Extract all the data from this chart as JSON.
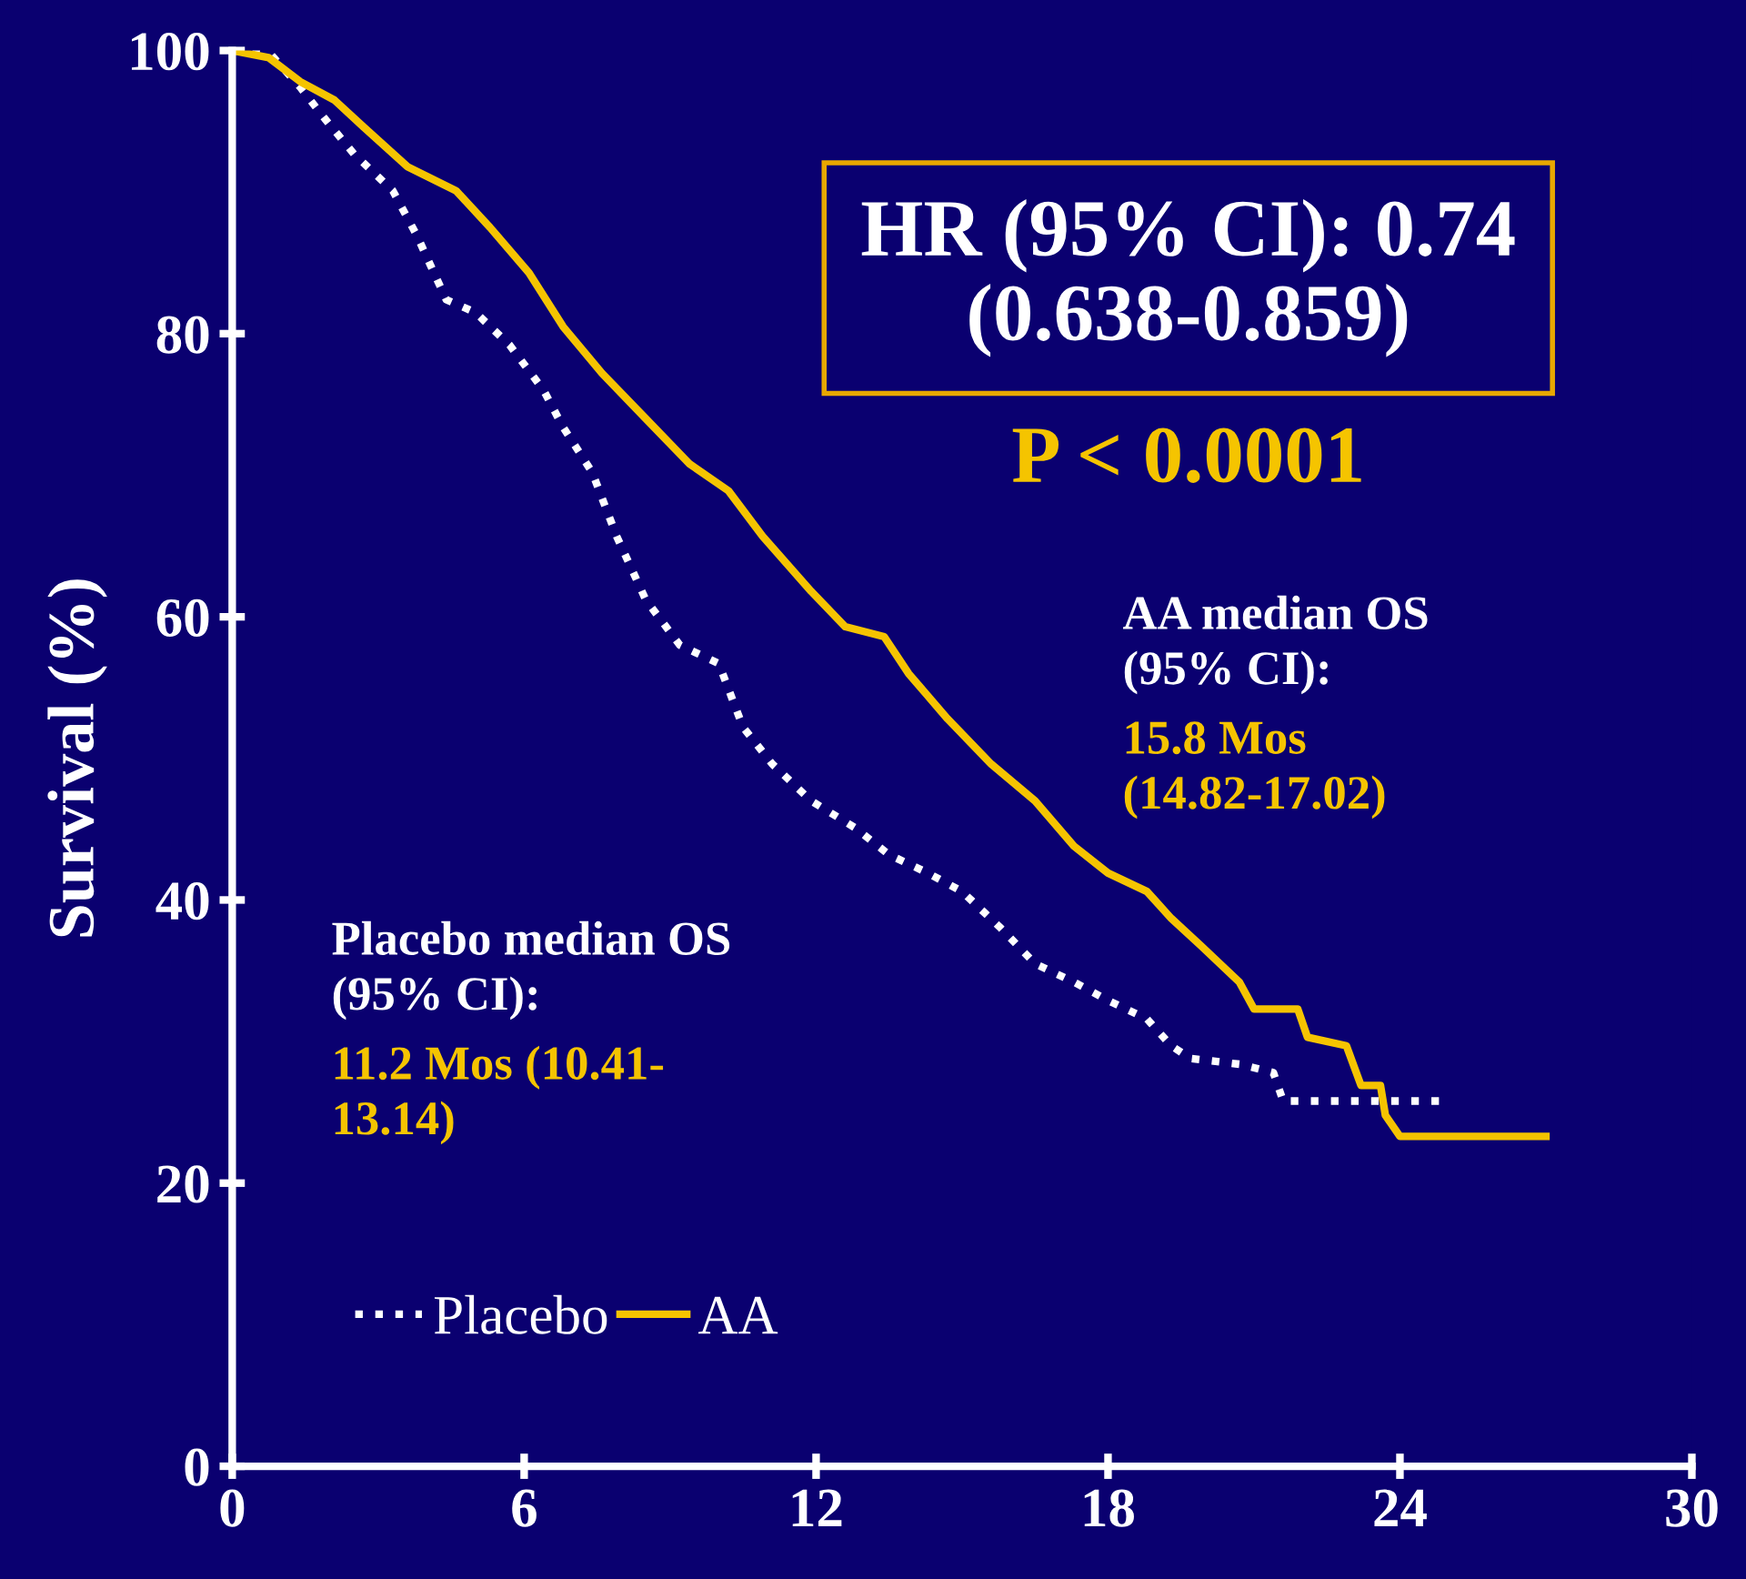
{
  "chart_data": {
    "type": "line",
    "ylabel": "Survival (%)",
    "xlim": [
      0,
      30
    ],
    "ylim": [
      0,
      100
    ],
    "xticks": [
      0,
      6,
      12,
      18,
      24,
      30
    ],
    "yticks": [
      0,
      20,
      40,
      60,
      80,
      100
    ],
    "grid": false,
    "legend": "bottom left",
    "marker": "none",
    "series": [
      {
        "name": "Placebo",
        "color": "#ffffff",
        "line_style": "dotted",
        "x": [
          0,
          0.8,
          1.4,
          1.9,
          2.5,
          3.3,
          3.8,
          4.4,
          5.0,
          5.7,
          6.4,
          6.8,
          7.4,
          7.9,
          8.5,
          9.2,
          10.0,
          10.5,
          11.1,
          11.9,
          12.8,
          13.5,
          14.3,
          15.0,
          15.8,
          16.5,
          17.3,
          18.0,
          18.8,
          19.3,
          19.7,
          20.7,
          21.4,
          21.6,
          25.0
        ],
        "values": [
          100,
          99.7,
          97.4,
          95.2,
          92.7,
          90.1,
          86.9,
          82.4,
          81.5,
          79.2,
          76.0,
          73.4,
          70.2,
          65.7,
          61.2,
          58.0,
          56.7,
          52.2,
          49.6,
          47.0,
          45.1,
          43.2,
          41.9,
          40.6,
          38.0,
          35.5,
          34.2,
          32.9,
          31.6,
          29.7,
          28.8,
          28.4,
          27.8,
          25.8,
          25.8
        ]
      },
      {
        "name": "AA",
        "color": "#f5c400",
        "line_style": "solid",
        "x": [
          0,
          0.75,
          1.4,
          2.1,
          2.7,
          3.6,
          4.6,
          5.3,
          6.1,
          6.8,
          7.6,
          8.5,
          9.4,
          10.2,
          10.9,
          11.9,
          12.6,
          13.4,
          13.9,
          14.7,
          15.6,
          16.5,
          17.3,
          18.0,
          18.8,
          19.3,
          19.9,
          20.7,
          21.0,
          21.9,
          22.1,
          22.9,
          23.2,
          23.6,
          23.7,
          24.0,
          27.0
        ],
        "values": [
          100,
          99.5,
          97.8,
          96.5,
          94.6,
          91.8,
          90.1,
          87.5,
          84.3,
          80.5,
          77.2,
          74.0,
          70.8,
          68.9,
          65.7,
          61.8,
          59.3,
          58.6,
          56.0,
          52.8,
          49.6,
          47.0,
          43.8,
          41.9,
          40.6,
          38.7,
          36.8,
          34.2,
          32.3,
          32.3,
          30.3,
          29.7,
          26.9,
          26.9,
          24.8,
          23.3,
          23.3
        ]
      }
    ],
    "annotations": [
      "HR (95% CI): 0.74\n(0.638-0.859)",
      "P < 0.0001",
      "AA median OS\n(95% CI):",
      "15.8 Mos\n(14.82-17.02)",
      "Placebo median OS\n(95% CI):",
      "11.2 Mos (10.41-\n13.14)"
    ]
  }
}
